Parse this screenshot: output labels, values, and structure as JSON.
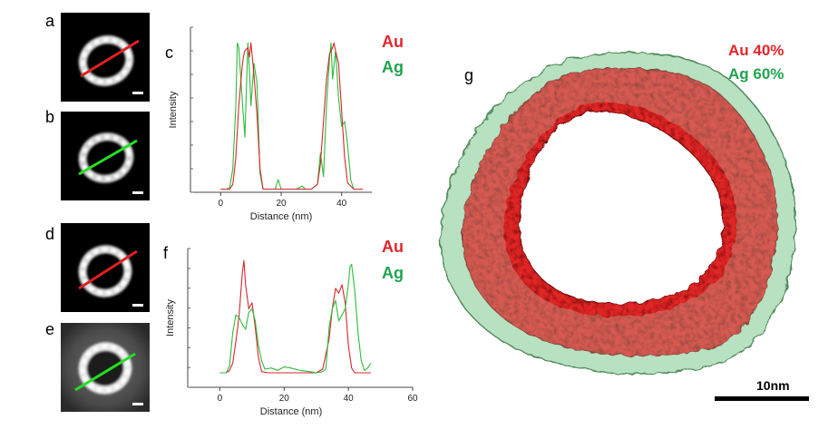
{
  "panels": {
    "a": "a",
    "b": "b",
    "c": "c",
    "d": "d",
    "e": "e",
    "f": "f",
    "g": "g"
  },
  "legend": {
    "au": "Au",
    "ag": "Ag"
  },
  "legend_g": {
    "au": "Au 40%",
    "ag": "Ag 60%"
  },
  "scale_bar_label": "10nm",
  "colors": {
    "au": "#e3252b",
    "ag": "#22a350",
    "au_line": "#d7262b",
    "ag_line": "#2dbb3b"
  },
  "chart_data": [
    {
      "id": "c",
      "type": "line",
      "xlabel": "Distance (nm)",
      "ylabel": "Intensity",
      "xlim": [
        -10,
        50
      ],
      "xticks": [
        0,
        20,
        40
      ],
      "ylim": [
        0,
        1.05
      ],
      "series": [
        {
          "name": "Au",
          "x": [
            0,
            2,
            3,
            4,
            5,
            6,
            7,
            7.5,
            8,
            9,
            9.5,
            10,
            11,
            12,
            13,
            14,
            15,
            20,
            25,
            30,
            32,
            33,
            34,
            35,
            36,
            37,
            37.5,
            38,
            39,
            40,
            41,
            42,
            44,
            45,
            47
          ],
          "values": [
            0.02,
            0.02,
            0.02,
            0.05,
            0.22,
            0.55,
            0.78,
            0.86,
            0.9,
            0.92,
            0.86,
            0.95,
            0.75,
            0.5,
            0.15,
            0.02,
            0.02,
            0.02,
            0.02,
            0.02,
            0.05,
            0.18,
            0.45,
            0.72,
            0.88,
            0.92,
            0.95,
            0.9,
            0.82,
            0.52,
            0.22,
            0.06,
            0.02,
            0.02,
            0.02
          ]
        },
        {
          "name": "Ag",
          "x": [
            0,
            2,
            3,
            4,
            5,
            5.5,
            6,
            7,
            8,
            9,
            9.5,
            10,
            11,
            12,
            13,
            14,
            15,
            18,
            19,
            20,
            25,
            27,
            28,
            30,
            32,
            33,
            34,
            35,
            36,
            36.5,
            37,
            38,
            39,
            40,
            41,
            42,
            43,
            44,
            45,
            47
          ],
          "values": [
            0.02,
            0.02,
            0.03,
            0.15,
            0.55,
            0.95,
            0.92,
            0.62,
            0.35,
            0.95,
            0.78,
            0.55,
            0.82,
            0.7,
            0.12,
            0.02,
            0.02,
            0.02,
            0.08,
            0.02,
            0.02,
            0.04,
            0.02,
            0.02,
            0.05,
            0.25,
            0.1,
            0.55,
            0.85,
            0.95,
            0.72,
            0.9,
            0.6,
            0.42,
            0.45,
            0.3,
            0.08,
            0.02,
            0.02,
            0.02
          ]
        }
      ]
    },
    {
      "id": "f",
      "type": "line",
      "xlabel": "Distance (nm)",
      "ylabel": "Intensity",
      "xlim": [
        -10,
        60
      ],
      "xticks": [
        0,
        20,
        40,
        60
      ],
      "ylim": [
        -0.1,
        1.05
      ],
      "series": [
        {
          "name": "Au",
          "x": [
            0,
            2,
            3,
            4,
            5,
            6,
            7,
            7.5,
            8,
            9,
            10,
            11,
            12,
            13,
            15,
            20,
            25,
            30,
            32,
            34,
            35,
            36,
            37,
            38,
            39,
            40,
            41,
            42,
            44,
            47
          ],
          "values": [
            0.02,
            0.02,
            0.04,
            0.1,
            0.28,
            0.5,
            0.85,
            0.95,
            0.75,
            0.55,
            0.6,
            0.4,
            0.15,
            0.03,
            0.02,
            0.02,
            0.02,
            0.02,
            0.05,
            0.3,
            0.55,
            0.72,
            0.68,
            0.75,
            0.6,
            0.25,
            0.06,
            0.02,
            0.02,
            0.02
          ]
        },
        {
          "name": "Ag",
          "x": [
            0,
            2,
            3,
            4,
            5,
            6,
            7,
            8,
            9,
            10,
            11,
            12,
            13,
            14,
            16,
            18,
            20,
            22,
            25,
            28,
            30,
            32,
            33,
            34,
            35,
            36,
            37,
            38,
            39,
            40,
            40.5,
            41,
            42,
            43,
            44,
            45,
            46,
            47
          ],
          "values": [
            0.02,
            0.02,
            0.08,
            0.35,
            0.5,
            0.48,
            0.42,
            0.38,
            0.52,
            0.55,
            0.45,
            0.25,
            0.12,
            0.05,
            0.06,
            0.04,
            0.07,
            0.06,
            0.04,
            0.03,
            0.02,
            0.03,
            0.05,
            0.4,
            0.55,
            0.62,
            0.45,
            0.5,
            0.55,
            0.75,
            0.9,
            0.92,
            0.7,
            0.35,
            0.12,
            0.04,
            0.06,
            0.1
          ]
        }
      ]
    }
  ]
}
